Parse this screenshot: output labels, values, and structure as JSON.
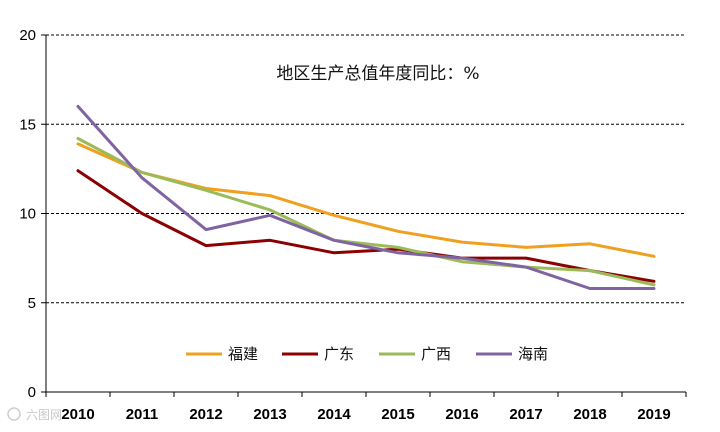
{
  "chart_data": {
    "type": "line",
    "title": "地区生产总值年度同比：%",
    "xlabel": "",
    "ylabel": "",
    "categories": [
      "2010",
      "2011",
      "2012",
      "2013",
      "2014",
      "2015",
      "2016",
      "2017",
      "2018",
      "2019"
    ],
    "ylim": [
      0,
      20
    ],
    "yticks": [
      0,
      5,
      10,
      15,
      20
    ],
    "grid": "horizontal-dashed",
    "legend_position": "bottom-center",
    "series": [
      {
        "name": "福建",
        "color": "#F0A020",
        "values": [
          13.9,
          12.3,
          11.4,
          11.0,
          9.9,
          9.0,
          8.4,
          8.1,
          8.3,
          7.6
        ]
      },
      {
        "name": "广东",
        "color": "#8B0000",
        "values": [
          12.4,
          10.0,
          8.2,
          8.5,
          7.8,
          8.0,
          7.5,
          7.5,
          6.8,
          6.2
        ]
      },
      {
        "name": "广西",
        "color": "#9BBB59",
        "values": [
          14.2,
          12.3,
          11.3,
          10.2,
          8.5,
          8.1,
          7.3,
          7.0,
          6.8,
          6.0
        ]
      },
      {
        "name": "海南",
        "color": "#8064A2",
        "values": [
          16.0,
          12.0,
          9.1,
          9.9,
          8.5,
          7.8,
          7.5,
          7.0,
          5.8,
          5.8
        ]
      }
    ]
  },
  "watermark": "六图网"
}
